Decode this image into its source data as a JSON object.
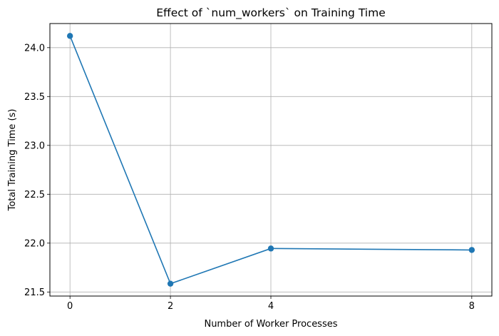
{
  "chart_data": {
    "type": "line",
    "title": "Effect of `num_workers` on Training Time",
    "xlabel": "Number of Worker Processes",
    "ylabel": "Total Training Time (s)",
    "x": [
      0,
      2,
      4,
      8
    ],
    "series": [
      {
        "values": [
          24.12,
          21.585,
          21.945,
          21.93
        ],
        "color": "#1f77b4",
        "marker": "circle"
      }
    ],
    "xticks": [
      0,
      2,
      4,
      8
    ],
    "yticks": [
      21.5,
      22.0,
      22.5,
      23.0,
      23.5,
      24.0
    ],
    "ytick_labels": [
      "21.5",
      "22.0",
      "22.5",
      "23.0",
      "23.5",
      "24.0"
    ],
    "xlim": [
      -0.4,
      8.4
    ],
    "ylim": [
      21.4585,
      24.2467
    ],
    "grid": true
  }
}
